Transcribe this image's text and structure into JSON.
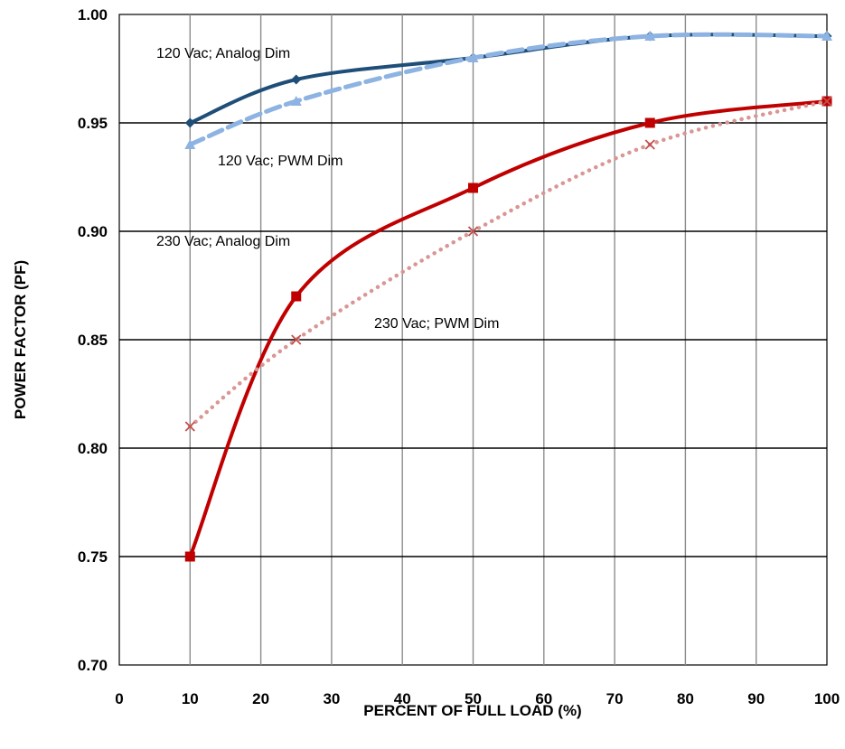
{
  "chart_data": {
    "type": "line",
    "xlabel": "PERCENT OF FULL LOAD (%)",
    "ylabel": "POWER FACTOR (PF)",
    "xlim": [
      0,
      100
    ],
    "ylim": [
      0.7,
      1.0
    ],
    "x_ticks": [
      "0",
      "10",
      "20",
      "30",
      "40",
      "50",
      "60",
      "70",
      "80",
      "90",
      "100"
    ],
    "y_ticks": [
      "0.70",
      "0.75",
      "0.80",
      "0.85",
      "0.90",
      "0.95",
      "1.00"
    ],
    "grid": true,
    "series": [
      {
        "name": "120 Vac; Analog Dim",
        "color": "#1f4e79",
        "style": "solid",
        "marker": "diamond",
        "x": [
          10,
          25,
          50,
          75,
          100
        ],
        "y": [
          0.95,
          0.97,
          0.98,
          0.99,
          0.99
        ]
      },
      {
        "name": "120 Vac; PWM Dim",
        "color": "#8db3e2",
        "style": "dashed",
        "marker": "triangle",
        "x": [
          10,
          25,
          50,
          75,
          100
        ],
        "y": [
          0.94,
          0.96,
          0.98,
          0.99,
          0.99
        ]
      },
      {
        "name": "230 Vac; Analog Dim",
        "color": "#c00000",
        "style": "solid",
        "marker": "square",
        "x": [
          10,
          25,
          50,
          75,
          100
        ],
        "y": [
          0.75,
          0.87,
          0.92,
          0.95,
          0.96
        ]
      },
      {
        "name": "230 Vac; PWM Dim",
        "color": "#d99694",
        "style": "dotted",
        "marker": "x",
        "x": [
          10,
          25,
          50,
          75,
          100
        ],
        "y": [
          0.81,
          0.85,
          0.9,
          0.94,
          0.96
        ]
      }
    ]
  }
}
